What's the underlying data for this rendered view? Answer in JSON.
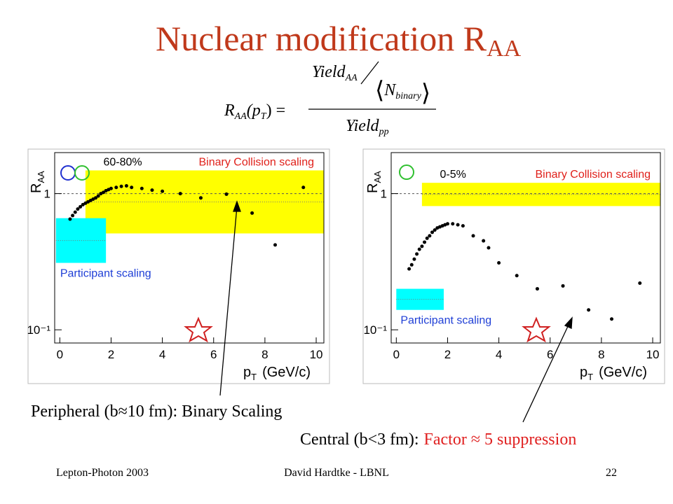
{
  "title": {
    "text": "Nuclear modification R",
    "sub": "AA"
  },
  "formula": {
    "lhs": "R",
    "lhs_sub": "AA",
    "arg": "(p",
    "arg_sub": "T",
    "close": ") =",
    "num": "Yield",
    "num_sub": "AA",
    "inner": "N",
    "inner_sub": "binary",
    "den": "Yield",
    "den_sub": "pp"
  },
  "chart_data": [
    {
      "type": "scatter",
      "title": "60-80%",
      "x_label": "p",
      "x_label_sub": "T",
      "x_label_rest": "(GeV/c)",
      "y_label": "R",
      "y_label_sub": "AA",
      "log_y": true,
      "xlim": [
        -0.2,
        10.3
      ],
      "ylim": [
        0.08,
        2
      ],
      "xticks": [
        0,
        2,
        4,
        6,
        8,
        10
      ],
      "yticks": [
        {
          "value": 0.1,
          "label": "10⁻¹"
        },
        1
      ],
      "reference_line": 1,
      "color": "#000000",
      "x": [
        0.4,
        0.5,
        0.6,
        0.7,
        0.8,
        0.9,
        1.0,
        1.1,
        1.2,
        1.3,
        1.4,
        1.5,
        1.6,
        1.7,
        1.8,
        1.9,
        2.0,
        2.2,
        2.4,
        2.6,
        2.8,
        3.2,
        3.6,
        4.0,
        4.7,
        5.5,
        6.5,
        7.5,
        8.4,
        9.5
      ],
      "values": [
        0.65,
        0.69,
        0.73,
        0.77,
        0.8,
        0.83,
        0.85,
        0.87,
        0.89,
        0.91,
        0.93,
        0.96,
        1.0,
        1.02,
        1.05,
        1.07,
        1.09,
        1.11,
        1.13,
        1.14,
        1.11,
        1.09,
        1.06,
        1.04,
        1.0,
        0.93,
        0.99,
        0.72,
        0.42,
        1.11
      ],
      "bands": [
        {
          "label": "Binary Collision scaling",
          "color": "#ffff00",
          "label_color": "#e0201a",
          "x": [
            1,
            10.3
          ],
          "y": [
            0.51,
            1.48
          ]
        },
        {
          "label": "Participant scaling",
          "color": "#00ffff",
          "label_color": "#1f3fd6",
          "x": [
            -0.15,
            1.8
          ],
          "y": [
            0.31,
            0.66
          ]
        }
      ]
    },
    {
      "type": "scatter",
      "title": "0-5%",
      "x_label": "p",
      "x_label_sub": "T",
      "x_label_rest": "(GeV/c)",
      "y_label": "R",
      "y_label_sub": "AA",
      "log_y": true,
      "xlim": [
        -0.2,
        10.3
      ],
      "ylim": [
        0.08,
        2
      ],
      "xticks": [
        0,
        2,
        4,
        6,
        8,
        10
      ],
      "yticks": [
        {
          "value": 0.1,
          "label": "10⁻¹"
        },
        1
      ],
      "reference_line": 1,
      "color": "#000000",
      "x": [
        0.5,
        0.6,
        0.7,
        0.8,
        0.9,
        1.0,
        1.1,
        1.2,
        1.3,
        1.4,
        1.5,
        1.6,
        1.7,
        1.8,
        1.9,
        2.0,
        2.2,
        2.4,
        2.6,
        3.0,
        3.4,
        3.6,
        4.0,
        4.7,
        5.5,
        6.5,
        7.5,
        8.4,
        9.5
      ],
      "values": [
        0.28,
        0.3,
        0.33,
        0.36,
        0.39,
        0.41,
        0.44,
        0.47,
        0.49,
        0.52,
        0.54,
        0.56,
        0.57,
        0.58,
        0.59,
        0.6,
        0.6,
        0.59,
        0.58,
        0.49,
        0.45,
        0.4,
        0.31,
        0.25,
        0.2,
        0.21,
        0.14,
        0.12,
        0.22
      ],
      "bands": [
        {
          "label": "Binary Collision scaling",
          "color": "#ffff00",
          "label_color": "#e0201a",
          "x": [
            1,
            10.3
          ],
          "y": [
            0.81,
            1.2
          ]
        },
        {
          "label": "Participant scaling",
          "color": "#00ffff",
          "label_color": "#1f3fd6",
          "x": [
            0,
            1.85
          ],
          "y": [
            0.14,
            0.2
          ]
        }
      ]
    }
  ],
  "annotations": {
    "peripheral": "Peripheral (b≈10 fm): Binary Scaling",
    "central": "Central (b<3 fm):",
    "central_highlight": "Factor ≈ 5 suppression"
  },
  "footer": {
    "left": "Lepton-Photon 2003",
    "center": "David Hardtke - LBNL",
    "page": "22"
  }
}
